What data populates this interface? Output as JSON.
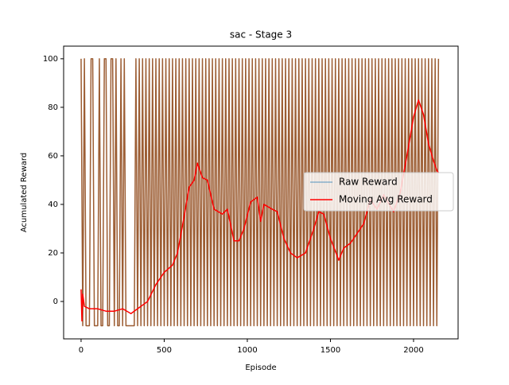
{
  "chart_data": {
    "type": "line",
    "title": "sac - Stage 3",
    "x_label": "Episode",
    "y_label": "Acumulated Reward",
    "xlim": [
      -105,
      2268
    ],
    "ylim": [
      -15.4,
      105.2
    ],
    "xticks": [
      0,
      500,
      1000,
      1500,
      2000
    ],
    "yticks": [
      0,
      20,
      40,
      60,
      80,
      100
    ],
    "legend": "center right",
    "series": [
      {
        "name": "Raw Reward",
        "color": "#1f77b4",
        "band_color": "#9c5d33",
        "x": [
          0,
          10,
          20,
          30,
          40,
          50,
          60,
          70,
          80,
          90,
          100,
          110,
          120,
          130,
          140,
          150,
          160,
          170,
          180,
          190,
          200,
          210,
          220,
          230,
          240,
          250,
          260,
          270,
          280,
          290,
          300,
          310,
          320,
          330,
          340,
          350,
          360,
          370,
          380,
          390,
          400,
          410,
          420,
          430,
          440,
          450,
          460,
          470,
          480,
          490,
          500,
          510,
          520,
          530,
          540,
          550,
          560,
          570,
          580,
          590,
          600,
          610,
          620,
          630,
          640,
          650,
          660,
          670,
          680,
          690,
          700,
          710,
          720,
          730,
          740,
          750,
          760,
          770,
          780,
          790,
          800,
          810,
          820,
          830,
          840,
          850,
          860,
          870,
          880,
          890,
          900,
          910,
          920,
          930,
          940,
          950,
          960,
          970,
          980,
          990,
          1000,
          1010,
          1020,
          1030,
          1040,
          1050,
          1060,
          1070,
          1080,
          1090,
          1100,
          1110,
          1120,
          1130,
          1140,
          1150,
          1160,
          1170,
          1180,
          1190,
          1200,
          1210,
          1220,
          1230,
          1240,
          1250,
          1260,
          1270,
          1280,
          1290,
          1300,
          1310,
          1320,
          1330,
          1340,
          1350,
          1360,
          1370,
          1380,
          1390,
          1400,
          1410,
          1420,
          1430,
          1440,
          1450,
          1460,
          1470,
          1480,
          1490,
          1500,
          1510,
          1520,
          1530,
          1540,
          1550,
          1560,
          1570,
          1580,
          1590,
          1600,
          1610,
          1620,
          1630,
          1640,
          1650,
          1660,
          1670,
          1680,
          1690,
          1700,
          1710,
          1720,
          1730,
          1740,
          1750,
          1760,
          1770,
          1780,
          1790,
          1800,
          1810,
          1820,
          1830,
          1840,
          1850,
          1860,
          1870,
          1880,
          1890,
          1900,
          1910,
          1920,
          1930,
          1940,
          1950,
          1960,
          1970,
          1980,
          1990,
          2000,
          2010,
          2020,
          2030,
          2040,
          2050,
          2060,
          2070,
          2080,
          2090,
          2100,
          2110,
          2120,
          2130,
          2140,
          2150
        ],
        "values": [
          100,
          -10,
          100,
          -10,
          -10,
          -10,
          100,
          100,
          -10,
          -10,
          -10,
          100,
          -10,
          -10,
          100,
          100,
          -10,
          -10,
          100,
          100,
          -10,
          100,
          -10,
          -10,
          100,
          -10,
          100,
          -10,
          -10,
          -10,
          -10,
          -10,
          -10,
          100,
          -10,
          100,
          -10,
          100,
          -10,
          100,
          -10,
          100,
          -10,
          100,
          -10,
          100,
          -10,
          100,
          -10,
          100,
          -10,
          100,
          -10,
          100,
          -10,
          100,
          -10,
          100,
          -10,
          100,
          -10,
          100,
          -10,
          100,
          -10,
          100,
          -10,
          100,
          -10,
          100,
          -10,
          100,
          -10,
          100,
          -10,
          100,
          -10,
          100,
          -10,
          100,
          -10,
          100,
          -10,
          100,
          -10,
          100,
          -10,
          100,
          -10,
          100,
          -10,
          100,
          -10,
          100,
          -10,
          100,
          -10,
          100,
          -10,
          100,
          -10,
          100,
          -10,
          100,
          -10,
          100,
          -10,
          100,
          -10,
          100,
          -10,
          100,
          -10,
          100,
          -10,
          100,
          -10,
          100,
          -10,
          100,
          -10,
          100,
          -10,
          100,
          -10,
          100,
          -10,
          100,
          -10,
          100,
          -10,
          100,
          -10,
          100,
          -10,
          100,
          -10,
          100,
          -10,
          100,
          -10,
          100,
          -10,
          100,
          -10,
          100,
          -10,
          100,
          -10,
          100,
          -10,
          100,
          -10,
          100,
          -10,
          100,
          -10,
          100,
          -10,
          100,
          -10,
          100,
          -10,
          100,
          -10,
          100,
          -10,
          100,
          -10,
          100,
          -10,
          100,
          -10,
          100,
          -10,
          100,
          -10,
          100,
          -10,
          100,
          -10,
          100,
          -10,
          100,
          -10,
          100,
          -10,
          100,
          -10,
          100,
          -10,
          100,
          -10,
          100,
          -10,
          100,
          -10,
          100,
          -10,
          100,
          -10,
          100,
          -10,
          100,
          -10,
          100,
          -10,
          100,
          -10,
          100,
          -10,
          100,
          -10,
          100,
          -10,
          100
        ]
      },
      {
        "name": "Moving Avg Reward",
        "color": "#ff0000",
        "x": [
          0,
          5,
          10,
          20,
          50,
          100,
          150,
          200,
          250,
          300,
          340,
          400,
          450,
          500,
          550,
          580,
          620,
          650,
          680,
          700,
          730,
          760,
          800,
          850,
          880,
          920,
          950,
          980,
          1020,
          1060,
          1080,
          1100,
          1150,
          1180,
          1220,
          1260,
          1300,
          1350,
          1400,
          1430,
          1460,
          1500,
          1550,
          1580,
          1620,
          1660,
          1700,
          1740,
          1780,
          1820,
          1880,
          1920,
          1960,
          2000,
          2030,
          2060,
          2090,
          2120,
          2140,
          2150
        ],
        "values": [
          5,
          -8,
          3,
          -2,
          -3,
          -3,
          -4,
          -4,
          -3,
          -5,
          -3,
          0,
          7,
          12,
          15,
          20,
          35,
          47,
          50,
          57,
          51,
          50,
          38,
          36,
          38,
          25,
          25,
          30,
          41,
          43,
          33,
          40,
          38,
          37,
          26,
          20,
          18,
          20,
          30,
          37,
          36,
          26,
          17,
          22,
          24,
          28,
          32,
          42,
          38,
          44,
          37,
          45,
          60,
          76,
          83,
          77,
          65,
          58,
          54,
          53
        ]
      }
    ]
  }
}
